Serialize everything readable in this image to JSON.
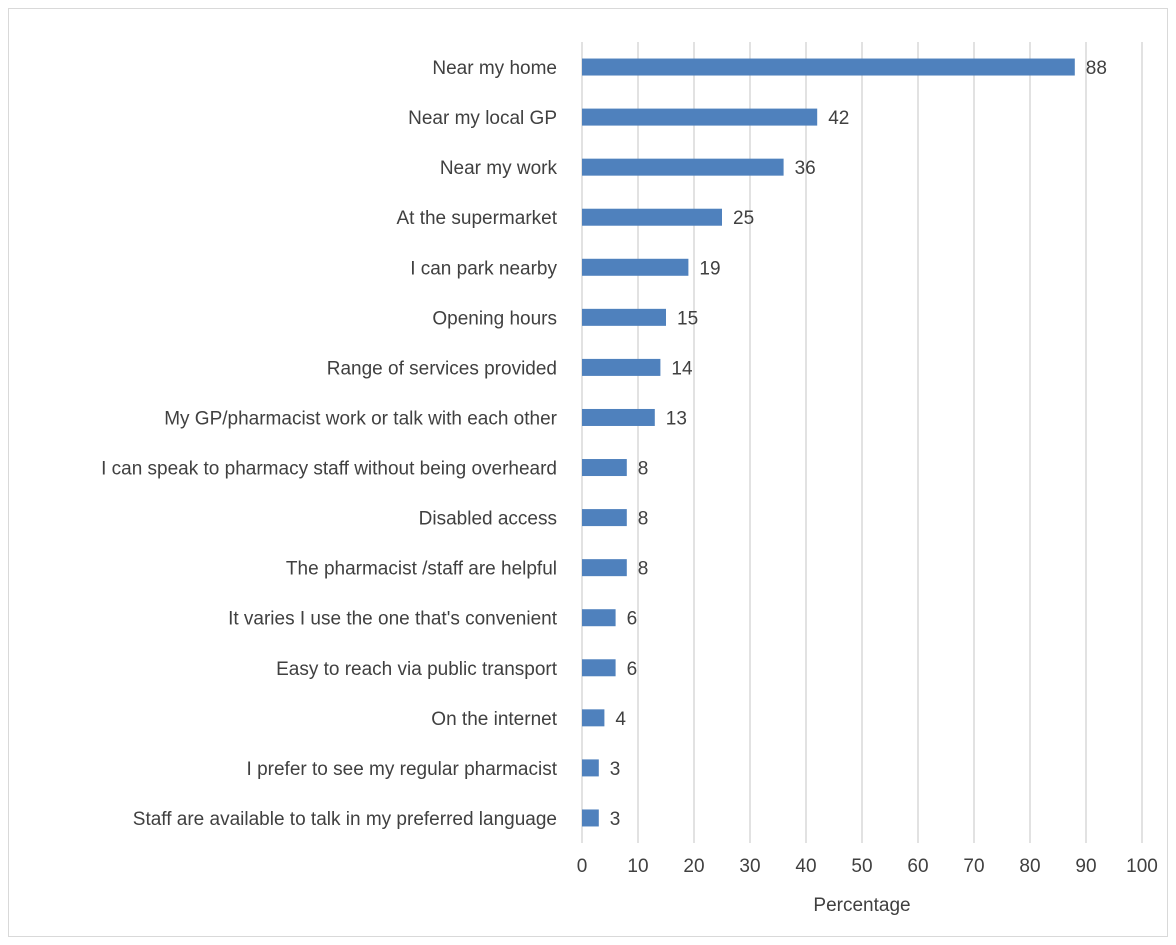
{
  "chart_data": {
    "type": "bar",
    "orientation": "horizontal",
    "title": "",
    "xlabel": "Percentage",
    "ylabel": "",
    "xlim": [
      0,
      100
    ],
    "xticks": [
      "0",
      "10",
      "20",
      "30",
      "40",
      "50",
      "60",
      "70",
      "80",
      "90",
      "100"
    ],
    "grid": "vertical",
    "bar_color": "#4f81bd",
    "categories": [
      "Near my home",
      "Near my local GP",
      "Near my work",
      "At the supermarket",
      "I can park nearby",
      "Opening hours",
      "Range of services provided",
      "My GP/pharmacist work or talk with each other",
      "I can speak to pharmacy staff without being overheard",
      "Disabled access",
      "The pharmacist /staff are helpful",
      "It varies I use the one that's convenient",
      "Easy to reach via public transport",
      "On the internet",
      "I prefer to see my regular pharmacist",
      "Staff are available to talk in my preferred language"
    ],
    "values": [
      88,
      42,
      36,
      25,
      19,
      15,
      14,
      13,
      8,
      8,
      8,
      6,
      6,
      4,
      3,
      3
    ],
    "value_labels": [
      "88",
      "42",
      "36",
      "25",
      "19",
      "15",
      "14",
      "13",
      "8",
      "8",
      "8",
      "6",
      "6",
      "4",
      "3",
      "3"
    ]
  }
}
